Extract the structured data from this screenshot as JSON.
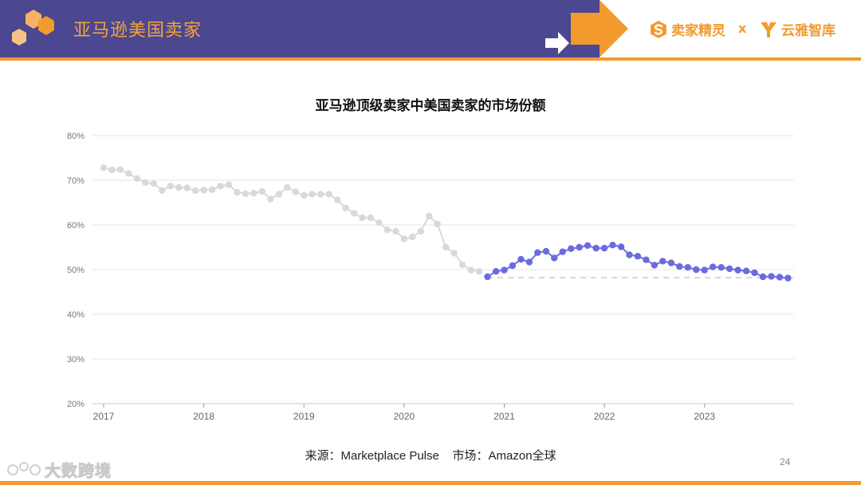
{
  "header": {
    "title": "亚马逊美国卖家",
    "brand1": "卖家精灵",
    "brand_separator": "x",
    "brand2": "云雅智库"
  },
  "colors": {
    "header_band": "#4b4790",
    "accent_orange": "#f29a2e",
    "series_gray": "#d9d9d9",
    "series_blue": "#6a6be0",
    "reference_dash": "#d6d6d6",
    "gridline": "#e6e6e6"
  },
  "chart_data": {
    "type": "line",
    "title": "亚马逊顶级卖家中美国卖家的市场份额",
    "xlabel": "",
    "ylabel": "",
    "ylim": [
      20,
      80
    ],
    "xlim": [
      2017.0,
      2023.83
    ],
    "grid": true,
    "legend": "none",
    "y_ticks": [
      "80%",
      "70%",
      "60%",
      "50%",
      "40%",
      "30%",
      "20%"
    ],
    "x_ticks": [
      "2017",
      "2018",
      "2019",
      "2020",
      "2021",
      "2022",
      "2023"
    ],
    "reference_line": {
      "y": 48.2,
      "from_x": 2020.83,
      "style": "dashed"
    },
    "series": [
      {
        "x": [
          2017.0,
          2017.083,
          2017.167,
          2017.25,
          2017.333,
          2017.417,
          2017.5,
          2017.583,
          2017.667,
          2017.75,
          2017.833,
          2017.917,
          2018.0,
          2018.083,
          2018.167,
          2018.25,
          2018.333,
          2018.417,
          2018.5,
          2018.583,
          2018.667,
          2018.75,
          2018.833,
          2018.917,
          2019.0,
          2019.083,
          2019.167,
          2019.25,
          2019.333,
          2019.417,
          2019.5,
          2019.583,
          2019.667,
          2019.75,
          2019.833,
          2019.917,
          2020.0,
          2020.083,
          2020.167,
          2020.25,
          2020.333,
          2020.417,
          2020.5,
          2020.583,
          2020.667,
          2020.75
        ],
        "values": [
          72.8,
          72.3,
          72.4,
          71.5,
          70.4,
          69.5,
          69.3,
          67.7,
          68.7,
          68.4,
          68.3,
          67.7,
          67.8,
          67.9,
          68.7,
          69.0,
          67.3,
          67.0,
          67.1,
          67.5,
          65.8,
          66.9,
          68.4,
          67.4,
          66.6,
          66.9,
          66.9,
          66.9,
          65.6,
          63.8,
          62.6,
          61.6,
          61.6,
          60.5,
          58.9,
          58.6,
          56.9,
          57.3,
          58.6,
          62.0,
          60.2,
          55.0,
          53.7,
          51.1,
          49.9,
          49.6
        ]
      },
      {
        "x": [
          2020.833,
          2020.917,
          2021.0,
          2021.083,
          2021.167,
          2021.25,
          2021.333,
          2021.417,
          2021.5,
          2021.583,
          2021.667,
          2021.75,
          2021.833,
          2021.917,
          2022.0,
          2022.083,
          2022.167,
          2022.25,
          2022.333,
          2022.417,
          2022.5,
          2022.583,
          2022.667,
          2022.75,
          2022.833,
          2022.917,
          2023.0,
          2023.083,
          2023.167,
          2023.25,
          2023.333,
          2023.417,
          2023.5,
          2023.583,
          2023.667,
          2023.75,
          2023.833
        ],
        "values": [
          48.4,
          49.6,
          49.9,
          50.9,
          52.3,
          51.7,
          53.8,
          54.1,
          52.6,
          54.0,
          54.7,
          55.0,
          55.4,
          54.8,
          54.8,
          55.5,
          55.1,
          53.3,
          53.0,
          52.2,
          51.0,
          51.9,
          51.5,
          50.7,
          50.5,
          50.0,
          49.9,
          50.6,
          50.5,
          50.2,
          49.9,
          49.7,
          49.3,
          48.4,
          48.5,
          48.3,
          48.1
        ]
      }
    ]
  },
  "footer": {
    "source": "来源：Marketplace Pulse    市场：Amazon全球",
    "page_number": "24",
    "watermark": "大数跨境"
  }
}
